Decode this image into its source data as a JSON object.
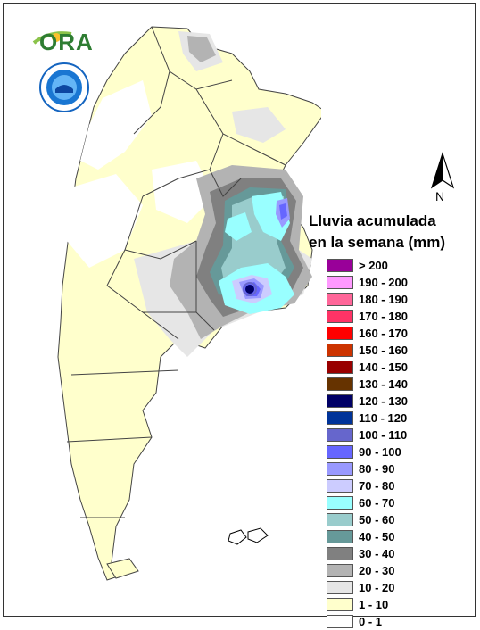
{
  "logo": {
    "text": "ORA"
  },
  "north": {
    "label": "N"
  },
  "legend": {
    "title_line1": "Lluvia acumulada",
    "title_line2": "en la semana (mm)",
    "items": [
      {
        "label": "> 200",
        "color": "#990099"
      },
      {
        "label": "190 - 200",
        "color": "#ff99ff"
      },
      {
        "label": "180 - 190",
        "color": "#ff6699"
      },
      {
        "label": "170 - 180",
        "color": "#ff3366"
      },
      {
        "label": "160 - 170",
        "color": "#ff0000"
      },
      {
        "label": "150 - 160",
        "color": "#cc3300"
      },
      {
        "label": "140 - 150",
        "color": "#990000"
      },
      {
        "label": "130 - 140",
        "color": "#663300"
      },
      {
        "label": "120 - 130",
        "color": "#000066"
      },
      {
        "label": "110 - 120",
        "color": "#003399"
      },
      {
        "label": "100 - 110",
        "color": "#6666cc"
      },
      {
        "label": "90 - 100",
        "color": "#6666ff"
      },
      {
        "label": "80 - 90",
        "color": "#9999ff"
      },
      {
        "label": "70 - 80",
        "color": "#ccccff"
      },
      {
        "label": "60 - 70",
        "color": "#99ffff"
      },
      {
        "label": "50 - 60",
        "color": "#99cccc"
      },
      {
        "label": "40 - 50",
        "color": "#669999"
      },
      {
        "label": "30 - 40",
        "color": "#808080"
      },
      {
        "label": "20 - 30",
        "color": "#b3b3b3"
      },
      {
        "label": "10 - 20",
        "color": "#e6e6e6"
      },
      {
        "label": "1 - 10",
        "color": "#ffffcc"
      },
      {
        "label": "0 - 1",
        "color": "#ffffff"
      }
    ]
  }
}
